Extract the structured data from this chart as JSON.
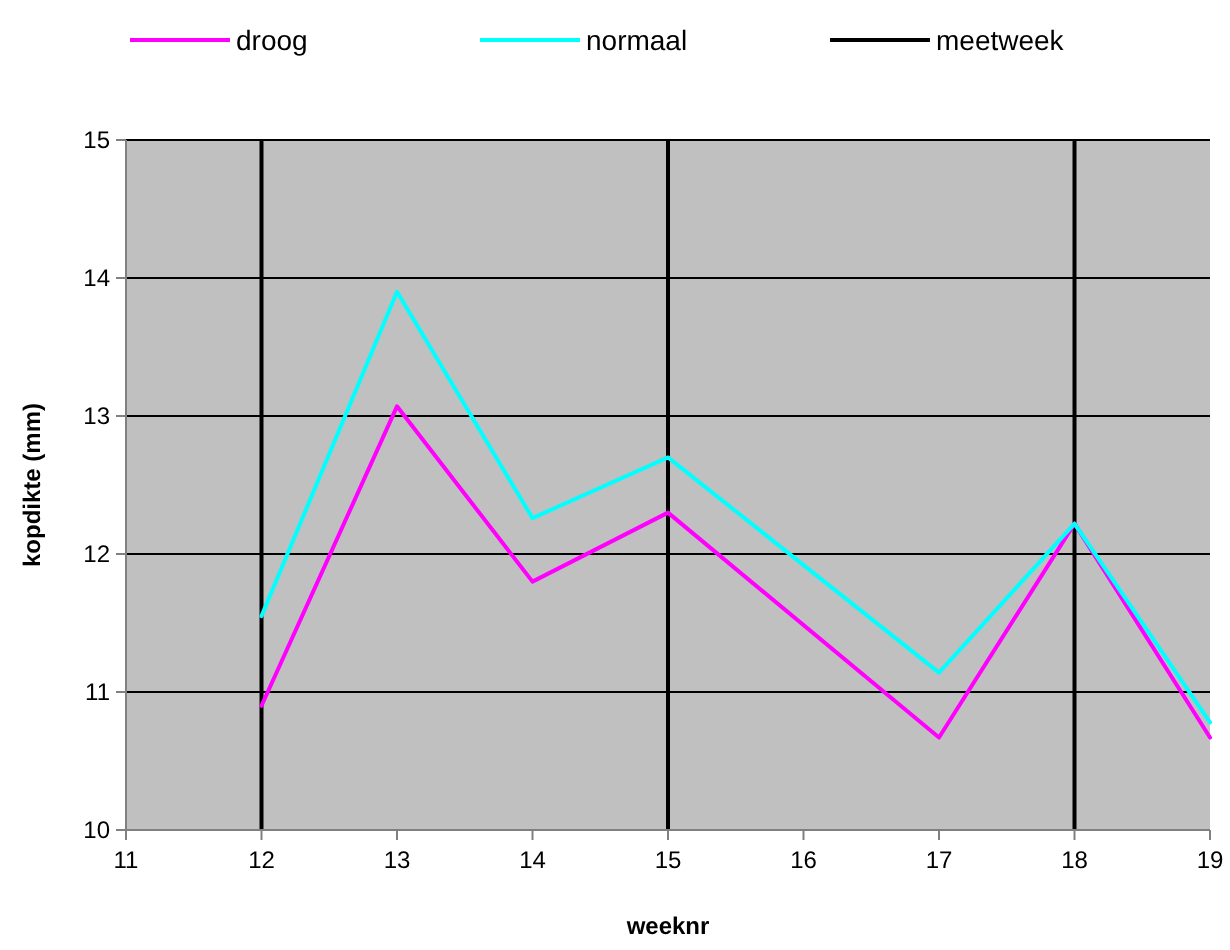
{
  "chart_data": {
    "type": "line",
    "xlabel": "weeknr",
    "ylabel": "kopdikte (mm)",
    "xlim": [
      11,
      19
    ],
    "xticks": [
      11,
      12,
      13,
      14,
      15,
      16,
      17,
      18,
      19
    ],
    "ylim": [
      10,
      15
    ],
    "yticks": [
      10,
      11,
      12,
      13,
      14,
      15
    ],
    "grid": "y",
    "legend": "top",
    "marker": "none",
    "line_style": "solid",
    "series": [
      {
        "name": "droog",
        "color": "#ff00ff",
        "x": [
          12,
          13,
          14,
          15,
          17,
          18,
          19
        ],
        "values": [
          10.9,
          13.07,
          11.8,
          12.3,
          10.67,
          12.22,
          10.67
        ]
      },
      {
        "name": "normaal",
        "color": "#00ffff",
        "x": [
          12,
          13,
          14,
          15,
          17,
          18,
          19
        ],
        "values": [
          11.55,
          13.9,
          12.26,
          12.7,
          11.14,
          12.22,
          10.78
        ]
      }
    ],
    "ref_lines": [
      {
        "axis": "x",
        "value": 12,
        "label": "meetweek",
        "color": "#000000"
      },
      {
        "axis": "x",
        "value": 15,
        "color": "#000000"
      },
      {
        "axis": "x",
        "value": 18,
        "color": "#000000"
      }
    ]
  }
}
